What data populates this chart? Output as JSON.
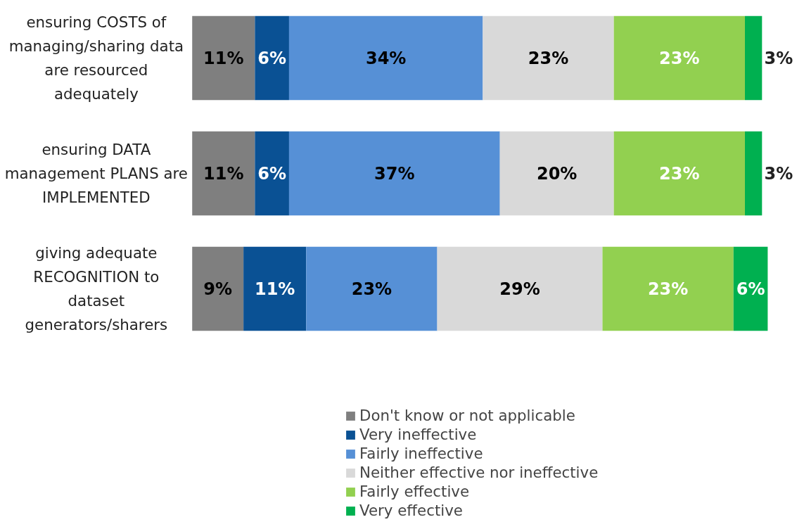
{
  "chart_data": {
    "type": "bar",
    "orientation": "horizontal",
    "stacked": true,
    "tick_labels": "y",
    "legend": "bottom",
    "grid": false,
    "categories": [
      "ensuring COSTS of managing/sharing data are resourced adequately",
      "ensuring DATA management PLANS are IMPLEMENTED",
      "giving adequate RECOGNITION to dataset generators/sharers"
    ],
    "series": [
      {
        "name": "Don't know or not applicable",
        "color": "#7f7f7f",
        "values": [
          11,
          11,
          9
        ],
        "value_labels": [
          "11%",
          "11%",
          "9%"
        ]
      },
      {
        "name": "Very ineffective",
        "color": "#0a5194",
        "values": [
          6,
          6,
          11
        ],
        "value_labels": [
          "6%",
          "6%",
          "11%"
        ]
      },
      {
        "name": "Fairly ineffective",
        "color": "#5690d6",
        "values": [
          34,
          37,
          23
        ],
        "value_labels": [
          "34%",
          "37%",
          "23%"
        ]
      },
      {
        "name": "Neither effective nor ineffective",
        "color": "#d9d9d9",
        "values": [
          23,
          20,
          29
        ],
        "value_labels": [
          "23%",
          "20%",
          "29%"
        ]
      },
      {
        "name": "Fairly effective",
        "color": "#92d050",
        "values": [
          23,
          23,
          23
        ],
        "value_labels": [
          "23%",
          "23%",
          "23%"
        ]
      },
      {
        "name": "Very effective",
        "color": "#00b050",
        "values": [
          3,
          3,
          6
        ],
        "value_labels": [
          "3%",
          "3%",
          "6%"
        ]
      }
    ]
  }
}
